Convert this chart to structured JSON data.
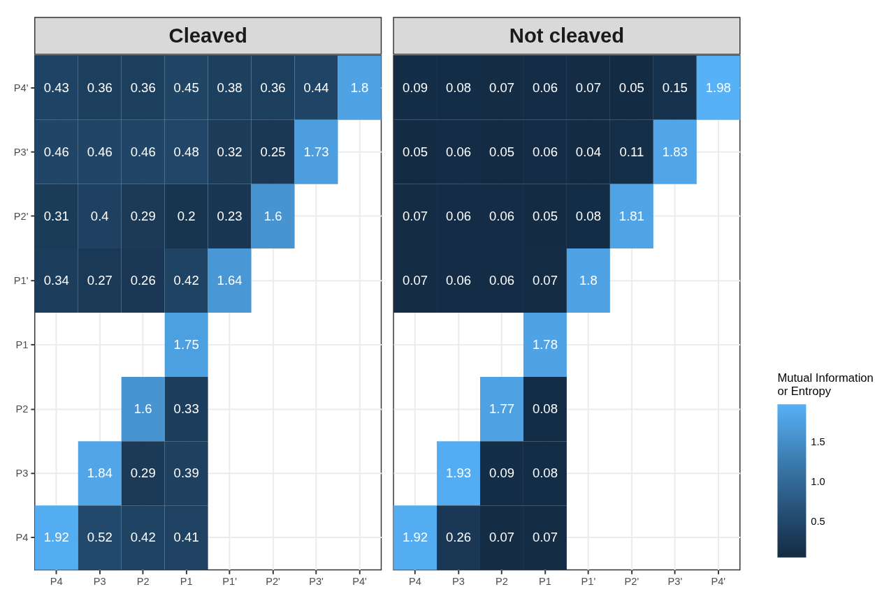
{
  "chart_data": [
    {
      "type": "heatmap",
      "title": "Cleaved",
      "categories": [
        "P4",
        "P3",
        "P2",
        "P1",
        "P1'",
        "P2'",
        "P3'",
        "P4'"
      ],
      "y_categories": [
        "P4'",
        "P3'",
        "P2'",
        "P1'",
        "P1",
        "P2",
        "P3",
        "P4"
      ],
      "cells": [
        [
          0.43,
          0.36,
          0.36,
          0.45,
          0.38,
          0.36,
          0.44,
          1.8
        ],
        [
          0.46,
          0.46,
          0.46,
          0.48,
          0.32,
          0.25,
          1.73,
          null
        ],
        [
          0.31,
          0.4,
          0.29,
          0.2,
          0.23,
          1.6,
          null,
          null
        ],
        [
          0.34,
          0.27,
          0.26,
          0.42,
          1.64,
          null,
          null,
          null
        ],
        [
          null,
          null,
          null,
          1.75,
          null,
          null,
          null,
          null
        ],
        [
          null,
          null,
          1.6,
          0.33,
          null,
          null,
          null,
          null
        ],
        [
          null,
          1.84,
          0.29,
          0.39,
          null,
          null,
          null,
          null
        ],
        [
          1.92,
          0.52,
          0.42,
          0.41,
          null,
          null,
          null,
          null
        ]
      ],
      "data_labels": true,
      "grid": true,
      "colors": [
        "#132b43",
        "#56b1f7"
      ]
    },
    {
      "type": "heatmap",
      "title": "Not cleaved",
      "categories": [
        "P4",
        "P3",
        "P2",
        "P1",
        "P1'",
        "P2'",
        "P3'",
        "P4'"
      ],
      "y_categories": [
        "P4'",
        "P3'",
        "P2'",
        "P1'",
        "P1",
        "P2",
        "P3",
        "P4"
      ],
      "cells": [
        [
          0.09,
          0.08,
          0.07,
          0.06,
          0.07,
          0.05,
          0.15,
          1.98
        ],
        [
          0.05,
          0.06,
          0.05,
          0.06,
          0.04,
          0.11,
          1.83,
          null
        ],
        [
          0.07,
          0.06,
          0.06,
          0.05,
          0.08,
          1.81,
          null,
          null
        ],
        [
          0.07,
          0.06,
          0.06,
          0.07,
          1.8,
          null,
          null,
          null
        ],
        [
          null,
          null,
          null,
          1.78,
          null,
          null,
          null,
          null
        ],
        [
          null,
          null,
          1.77,
          0.08,
          null,
          null,
          null,
          null
        ],
        [
          null,
          1.93,
          0.09,
          0.08,
          null,
          null,
          null,
          null
        ],
        [
          1.92,
          0.26,
          0.07,
          0.07,
          null,
          null,
          null,
          null
        ]
      ],
      "data_labels": true,
      "grid": true,
      "colors": [
        "#132b43",
        "#56b1f7"
      ],
      "clim": [
        0.04,
        1.98
      ],
      "cticks": [
        0.5,
        {
          "value": 1,
          "label": "1.0"
        },
        1.5
      ],
      "clabel": "Mutual Information\nor Entropy",
      "tick_labels": "x"
    }
  ]
}
